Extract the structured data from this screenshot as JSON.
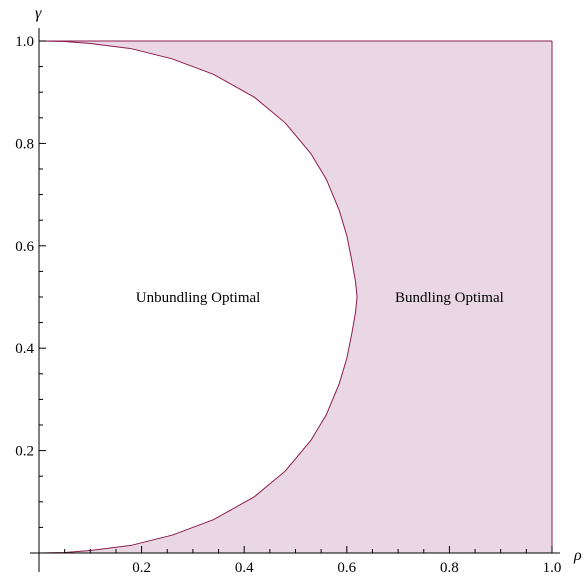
{
  "chart_data": {
    "type": "area",
    "title": "",
    "xlabel": "ρ",
    "ylabel": "γ",
    "xlim": [
      0,
      1
    ],
    "ylim": [
      0,
      1
    ],
    "grid": false,
    "x_ticks": [
      "0.2",
      "0.4",
      "0.6",
      "0.8",
      "1.0"
    ],
    "y_ticks": [
      "0.2",
      "0.4",
      "0.6",
      "0.8",
      "1.0"
    ],
    "x_tick_values": [
      0.2,
      0.4,
      0.6,
      0.8,
      1.0
    ],
    "y_tick_values": [
      0.2,
      0.4,
      0.6,
      0.8,
      1.0
    ],
    "boundary": {
      "x": [
        0.0,
        0.05,
        0.1,
        0.18,
        0.26,
        0.34,
        0.42,
        0.48,
        0.53,
        0.56,
        0.585,
        0.6,
        0.61,
        0.617,
        0.62,
        0.617,
        0.61,
        0.6,
        0.585,
        0.56,
        0.53,
        0.48,
        0.42,
        0.34,
        0.26,
        0.18,
        0.1,
        0.05,
        0.0
      ],
      "y": [
        1.0,
        0.999,
        0.995,
        0.985,
        0.965,
        0.935,
        0.89,
        0.84,
        0.78,
        0.73,
        0.67,
        0.62,
        0.57,
        0.53,
        0.5,
        0.47,
        0.43,
        0.38,
        0.33,
        0.27,
        0.22,
        0.16,
        0.11,
        0.065,
        0.035,
        0.015,
        0.005,
        0.001,
        0.0
      ]
    },
    "regions": [
      {
        "label": "Unbundling Optimal",
        "x": 0.31,
        "y": 0.5,
        "fill": "#ffffff"
      },
      {
        "label": "Bundling Optimal",
        "x": 0.8,
        "y": 0.5,
        "fill": "#e9d7e3"
      }
    ],
    "colors": {
      "shade": "#e9d7e3",
      "boundary": "#8b1c4e",
      "axis": "#000000"
    }
  }
}
